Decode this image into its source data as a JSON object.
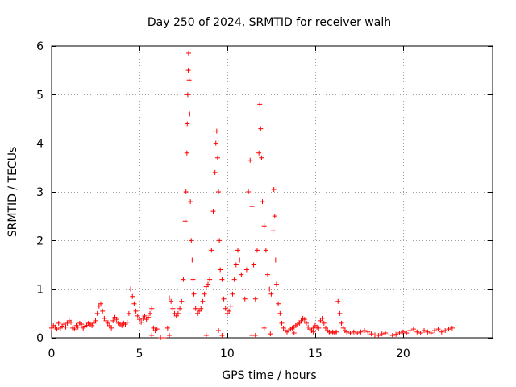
{
  "chart_data": {
    "type": "scatter",
    "title": "Day 250 of 2024, SRMTID for receiver walh",
    "xlabel": "GPS time / hours",
    "ylabel": "SRMTID / TECUs",
    "xlim": [
      0,
      25.1
    ],
    "ylim": [
      0,
      6
    ],
    "xticks": [
      0,
      5,
      10,
      15,
      20
    ],
    "xtick_labels": [
      "0",
      "5",
      "10",
      "15",
      "20"
    ],
    "yticks": [
      0,
      1,
      2,
      3,
      4,
      5,
      6
    ],
    "ytick_labels": [
      "0",
      "1",
      "2",
      "3",
      "4",
      "5",
      "6"
    ],
    "grid": true,
    "marker": "+",
    "color": "#ff0000",
    "series": [
      {
        "name": "SRMTID",
        "x": [
          0.0,
          0.1,
          0.2,
          0.3,
          0.4,
          0.5,
          0.6,
          0.7,
          0.8,
          0.9,
          1.0,
          1.1,
          1.2,
          1.3,
          1.4,
          1.5,
          1.6,
          1.7,
          1.8,
          1.9,
          2.0,
          2.1,
          2.2,
          2.3,
          2.4,
          2.5,
          2.6,
          2.7,
          2.8,
          2.9,
          3.0,
          3.1,
          3.2,
          3.3,
          3.4,
          3.5,
          3.6,
          3.7,
          3.8,
          3.9,
          4.0,
          4.1,
          4.2,
          4.3,
          4.4,
          4.5,
          4.6,
          4.7,
          4.8,
          4.9,
          5.0,
          5.1,
          5.2,
          5.3,
          5.4,
          5.5,
          5.6,
          5.7,
          5.8,
          5.9,
          6.0,
          6.2,
          6.4,
          6.6,
          6.7,
          6.8,
          6.9,
          7.0,
          7.1,
          7.2,
          7.3,
          7.4,
          7.5,
          7.6,
          7.65,
          7.7,
          7.72,
          7.75,
          7.78,
          7.8,
          7.83,
          7.86,
          7.9,
          7.95,
          8.0,
          8.05,
          8.1,
          8.2,
          8.3,
          8.4,
          8.5,
          8.6,
          8.7,
          8.8,
          8.9,
          9.0,
          9.1,
          9.2,
          9.3,
          9.35,
          9.4,
          9.45,
          9.5,
          9.55,
          9.6,
          9.7,
          9.8,
          9.9,
          10.0,
          10.1,
          10.2,
          10.3,
          10.4,
          10.5,
          10.6,
          10.7,
          10.8,
          10.9,
          11.0,
          11.1,
          11.2,
          11.3,
          11.4,
          11.5,
          11.6,
          11.7,
          11.8,
          11.85,
          11.9,
          11.95,
          12.0,
          12.1,
          12.2,
          12.3,
          12.4,
          12.5,
          12.6,
          12.65,
          12.7,
          12.75,
          12.8,
          12.9,
          13.0,
          13.1,
          13.2,
          13.3,
          13.4,
          13.5,
          13.6,
          13.7,
          13.8,
          13.9,
          14.0,
          14.1,
          14.2,
          14.3,
          14.4,
          14.5,
          14.6,
          14.7,
          14.8,
          14.9,
          15.0,
          15.1,
          15.2,
          15.3,
          15.4,
          15.5,
          15.6,
          15.7,
          15.8,
          15.9,
          16.0,
          16.1,
          16.2,
          16.3,
          16.4,
          16.5,
          16.6,
          16.7,
          16.8,
          17.0,
          17.2,
          17.4,
          17.6,
          17.8,
          18.0,
          18.2,
          18.4,
          18.6,
          18.8,
          19.0,
          19.2,
          19.4,
          19.6,
          19.8,
          20.0,
          20.2,
          20.4,
          20.6,
          20.8,
          21.0,
          21.2,
          21.4,
          21.6,
          21.8,
          22.0,
          22.2,
          22.4,
          22.6,
          22.8,
          5.7,
          6.7,
          8.8,
          9.5,
          9.7,
          11.4,
          11.6,
          12.1,
          12.45,
          13.8,
          14.9
        ],
        "y": [
          0.2,
          0.25,
          0.22,
          0.18,
          0.3,
          0.2,
          0.24,
          0.28,
          0.22,
          0.3,
          0.35,
          0.32,
          0.2,
          0.18,
          0.25,
          0.22,
          0.3,
          0.28,
          0.2,
          0.24,
          0.26,
          0.3,
          0.28,
          0.25,
          0.3,
          0.35,
          0.5,
          0.65,
          0.7,
          0.55,
          0.4,
          0.35,
          0.3,
          0.25,
          0.2,
          0.35,
          0.42,
          0.38,
          0.3,
          0.28,
          0.25,
          0.3,
          0.28,
          0.32,
          0.5,
          1.0,
          0.85,
          0.7,
          0.55,
          0.45,
          0.38,
          0.32,
          0.4,
          0.45,
          0.38,
          0.42,
          0.5,
          0.6,
          0.2,
          0.15,
          0.18,
          0.0,
          0.0,
          0.2,
          0.82,
          0.75,
          0.6,
          0.5,
          0.45,
          0.5,
          0.6,
          0.75,
          1.2,
          2.4,
          3.0,
          3.8,
          4.4,
          5.0,
          5.5,
          5.85,
          5.3,
          4.6,
          2.8,
          2.0,
          1.6,
          1.2,
          0.9,
          0.6,
          0.5,
          0.55,
          0.6,
          0.75,
          0.9,
          1.05,
          1.1,
          1.2,
          1.8,
          2.6,
          3.4,
          4.0,
          4.25,
          3.7,
          3.0,
          2.0,
          1.4,
          1.2,
          0.8,
          0.6,
          0.5,
          0.55,
          0.65,
          0.9,
          1.2,
          1.5,
          1.8,
          1.6,
          1.3,
          1.0,
          0.8,
          1.4,
          3.0,
          3.65,
          2.7,
          1.5,
          0.8,
          1.8,
          3.8,
          4.8,
          4.3,
          3.7,
          2.8,
          2.3,
          1.8,
          1.3,
          1.0,
          0.9,
          2.2,
          3.05,
          2.5,
          1.6,
          1.1,
          0.7,
          0.5,
          0.3,
          0.2,
          0.15,
          0.12,
          0.15,
          0.18,
          0.2,
          0.22,
          0.25,
          0.28,
          0.3,
          0.35,
          0.4,
          0.38,
          0.3,
          0.22,
          0.18,
          0.15,
          0.2,
          0.25,
          0.22,
          0.2,
          0.35,
          0.4,
          0.3,
          0.2,
          0.15,
          0.12,
          0.1,
          0.12,
          0.1,
          0.12,
          0.75,
          0.5,
          0.3,
          0.2,
          0.15,
          0.12,
          0.1,
          0.12,
          0.1,
          0.12,
          0.15,
          0.12,
          0.08,
          0.06,
          0.05,
          0.08,
          0.1,
          0.06,
          0.05,
          0.07,
          0.1,
          0.12,
          0.1,
          0.15,
          0.18,
          0.12,
          0.1,
          0.15,
          0.12,
          0.1,
          0.15,
          0.18,
          0.12,
          0.15,
          0.18,
          0.2,
          0.05,
          0.05,
          0.05,
          0.15,
          0.05,
          0.05,
          0.05,
          0.2,
          0.08,
          0.1,
          0.12
        ]
      }
    ]
  }
}
